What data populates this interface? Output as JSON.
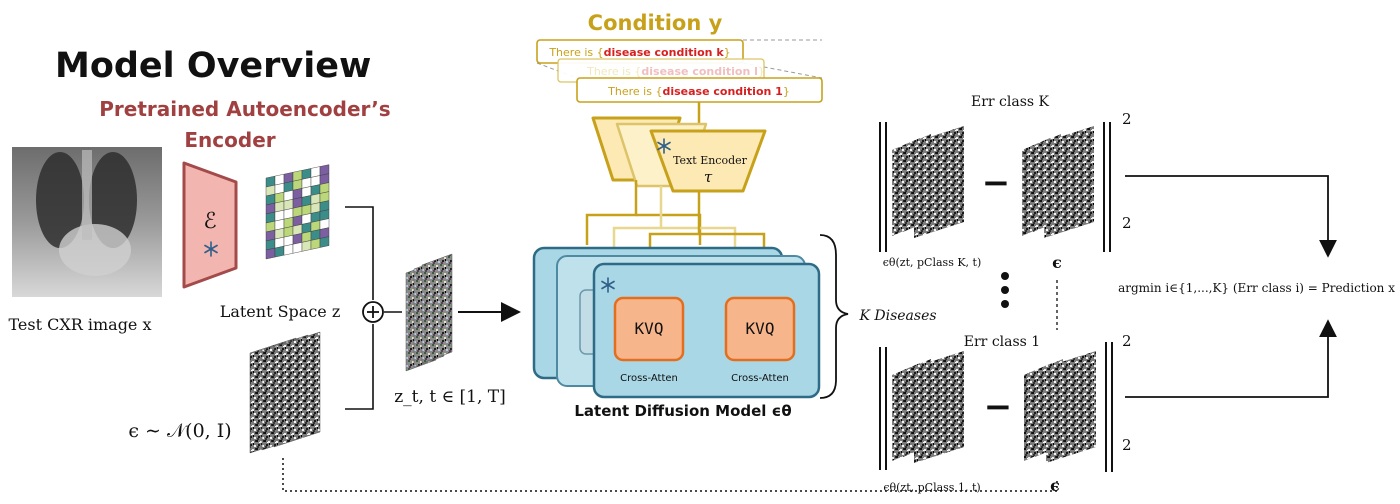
{
  "title": "Model Overview",
  "encoder": {
    "heading_line1": "Pretrained Autoencoder’s",
    "heading_line2": "Encoder",
    "symbol": "ℰ",
    "frozen_icon": "snowflake-icon",
    "latent_label": "Latent Space z"
  },
  "input": {
    "image_caption": "Test CXR image x",
    "noise_label": "ϵ ∼ 𝒩(0, I)",
    "noisy_latent_label": "z_t, t ∈ [1, T]"
  },
  "condition": {
    "heading": "Condition y",
    "prompts": [
      {
        "prefix": "There is {",
        "condition": "disease condition k",
        "suffix": "}"
      },
      {
        "prefix": "There is {",
        "condition": "disease condition l",
        "suffix": "}"
      },
      {
        "prefix": "There is {",
        "condition": "disease condition 1",
        "suffix": "}"
      }
    ],
    "text_encoder_label": "Text Encoder",
    "text_encoder_symbol": "τ"
  },
  "ldm": {
    "label": "Latent Diffusion Model ϵθ",
    "block1": "KVQ",
    "block2": "KVQ",
    "block_caption": "Cross-Atten",
    "brace_label": "K Diseases"
  },
  "errors": {
    "top_label": "Err class K",
    "bottom_label": "Err class 1",
    "top_pred_label": "ϵθ(zt, pClass K, t)",
    "bottom_pred_label": "ϵθ(zt, pClass 1, t)",
    "eps_label": "ϵ",
    "minus": "−",
    "norm_sup": "2",
    "norm_sub": "2"
  },
  "prediction": {
    "formula": "argmin i∈{1,...,K} (Err class i) = Prediction x"
  },
  "colors": {
    "encoder_heading": "#a04040",
    "encoder_fill": "#f3b5b0",
    "encoder_stroke": "#a34a4a",
    "condition_gold": "#c8a11b",
    "condition_red": "#d62020",
    "text_encoder_fill": "#fde9b3",
    "ldm_fill": "#a9d7e6",
    "ldm_stroke": "#2d6b86",
    "kvq_fill": "#f7b58c",
    "kvq_stroke": "#e36f1e",
    "grid_purple": "#7b5fa0",
    "grid_green": "#bcd77a",
    "grid_teal": "#3c8d89"
  }
}
